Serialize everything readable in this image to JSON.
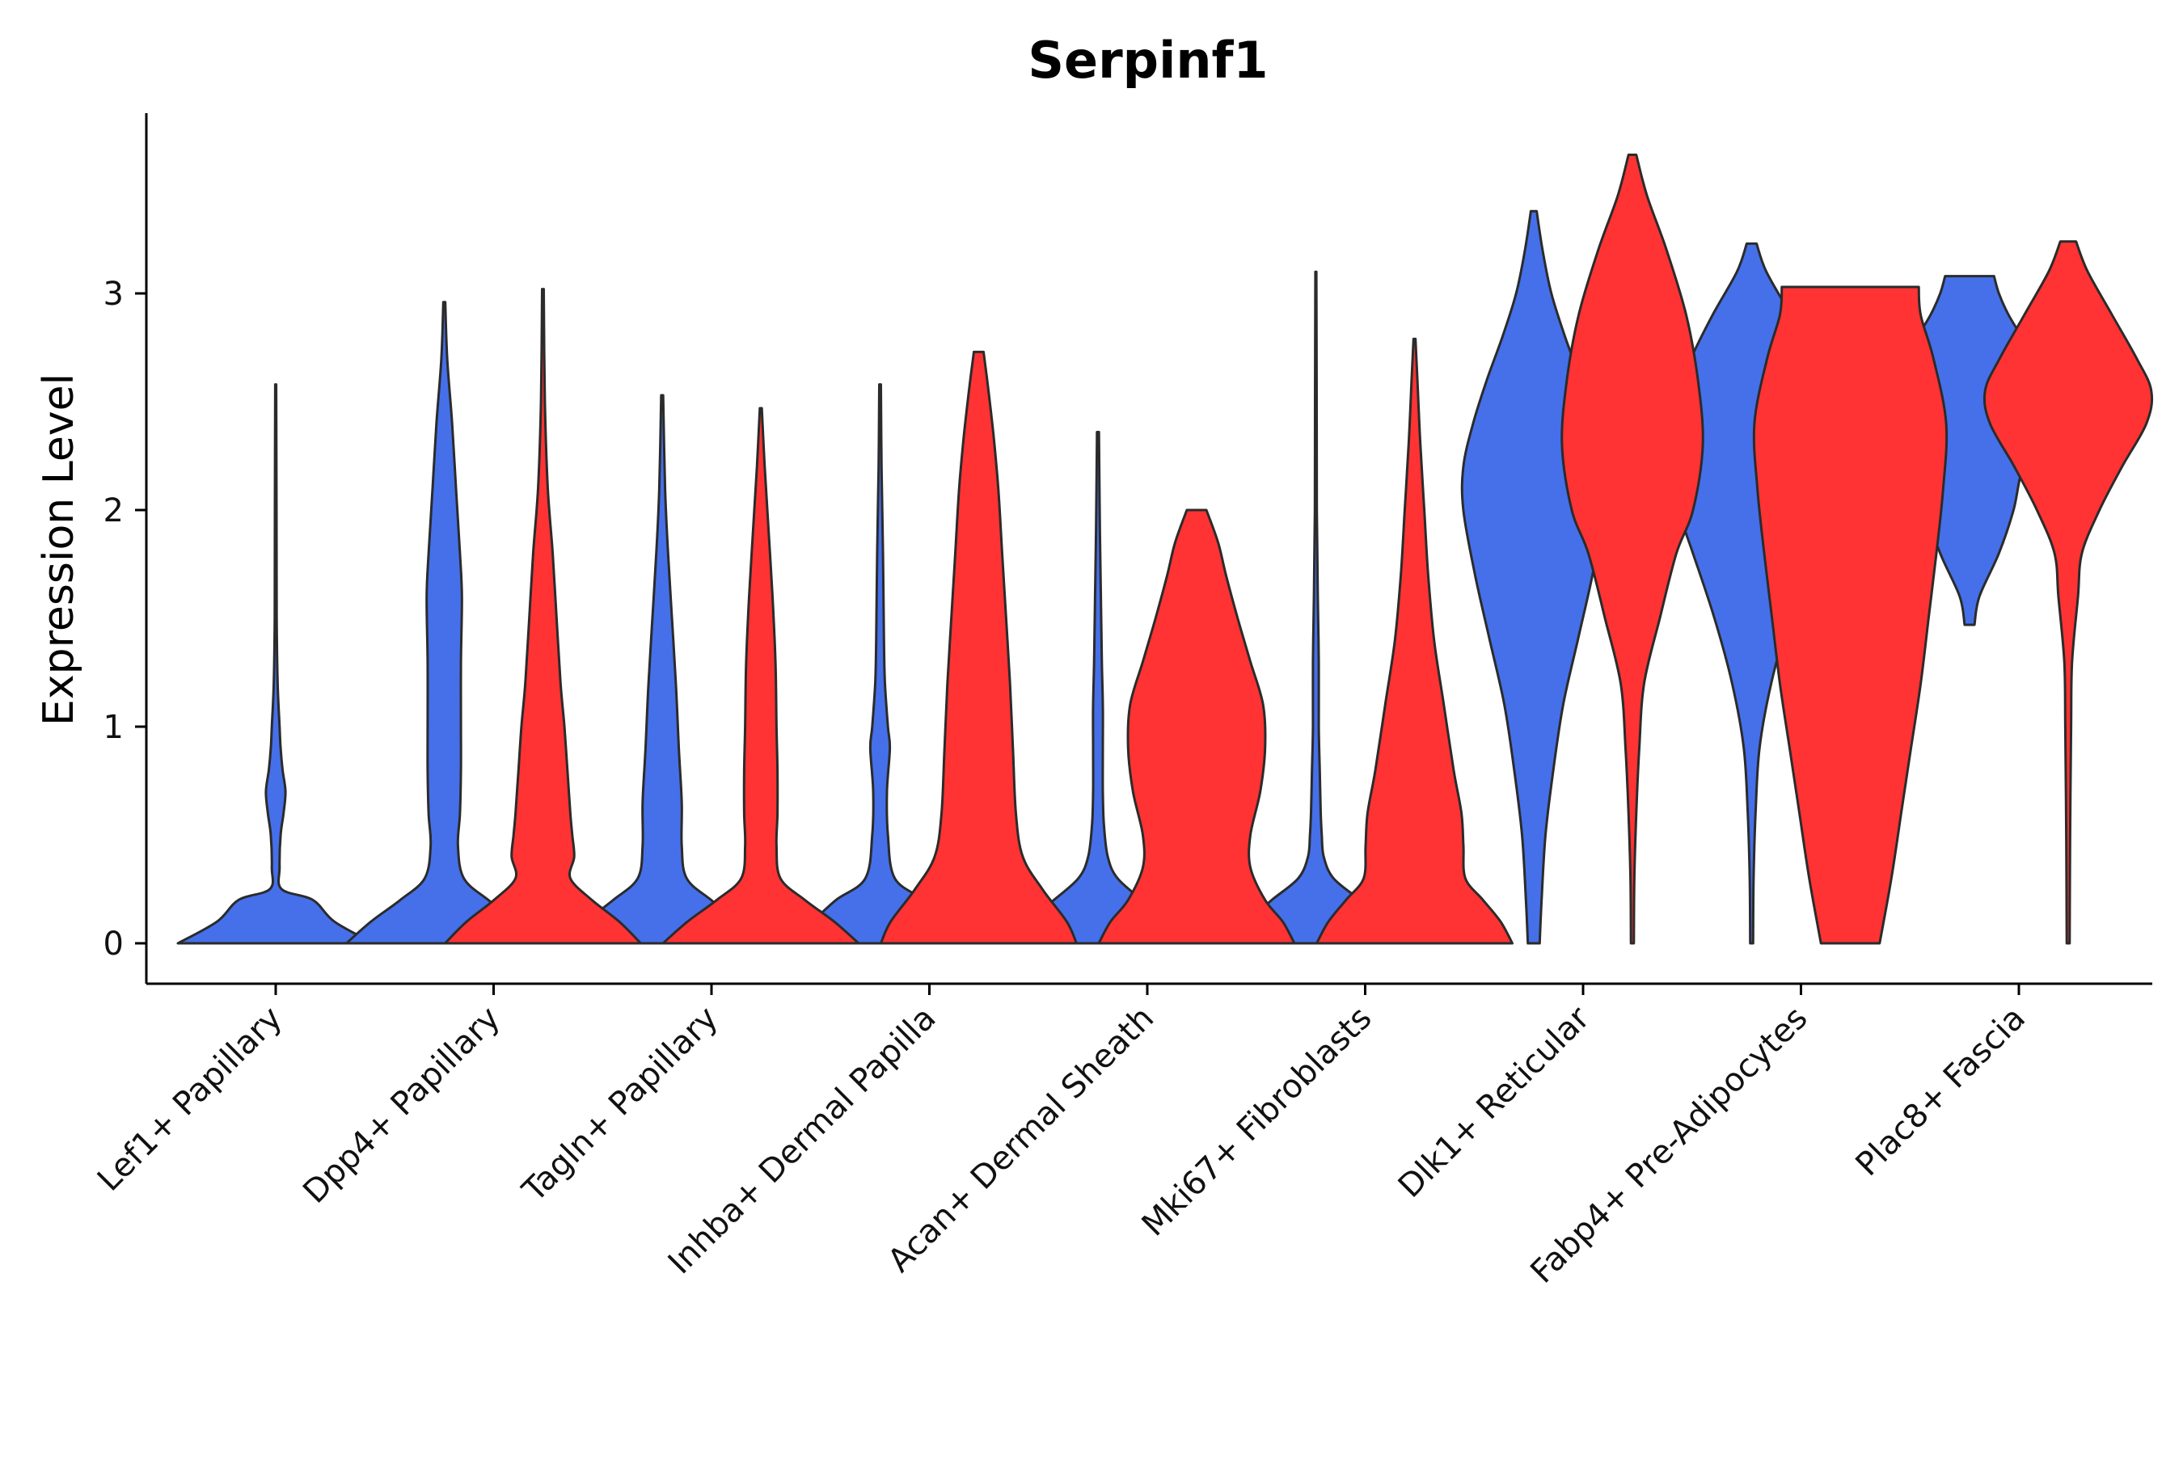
{
  "chart_data": {
    "type": "violin",
    "title": "Serpinf1",
    "xlabel": "",
    "ylabel": "Expression Level",
    "ylim": [
      -0.18,
      3.85
    ],
    "yticks": [
      0,
      1,
      2,
      3
    ],
    "grid": false,
    "legend": "none",
    "colors": {
      "group_a": "#4570EA",
      "group_b": "#FF3333",
      "outline": "#2b2b2b"
    },
    "categories": [
      "Lef1+ Papillary",
      "Dpp4+ Papillary",
      "Tagln+ Papillary",
      "Inhba+ Dermal Papilla",
      "Acan+ Dermal Sheath",
      "Mki67+ Fibroblasts",
      "Dlk1+ Reticular",
      "Fabp4+ Pre-Adipocytes",
      "Plac8+ Fascia"
    ],
    "series": [
      {
        "name": "group_a",
        "color": "#4570EA",
        "violins": [
          {
            "category": 0,
            "profile": [
              [
                0,
                1.0
              ],
              [
                0.1,
                0.6
              ],
              [
                0.2,
                0.38
              ],
              [
                0.25,
                0.06
              ],
              [
                0.35,
                0.04
              ],
              [
                0.5,
                0.05
              ],
              [
                0.6,
                0.08
              ],
              [
                0.7,
                0.1
              ],
              [
                0.8,
                0.07
              ],
              [
                0.9,
                0.05
              ],
              [
                1.0,
                0.04
              ],
              [
                1.2,
                0.02
              ],
              [
                1.5,
                0.01
              ],
              [
                2.0,
                0.008
              ],
              [
                2.58,
                0.005
              ]
            ]
          },
          {
            "category": 1,
            "profile": [
              [
                0,
                1.0
              ],
              [
                0.1,
                0.75
              ],
              [
                0.2,
                0.45
              ],
              [
                0.3,
                0.2
              ],
              [
                0.45,
                0.14
              ],
              [
                0.6,
                0.16
              ],
              [
                0.8,
                0.17
              ],
              [
                1.0,
                0.17
              ],
              [
                1.3,
                0.17
              ],
              [
                1.6,
                0.18
              ],
              [
                1.8,
                0.16
              ],
              [
                2.1,
                0.12
              ],
              [
                2.4,
                0.08
              ],
              [
                2.7,
                0.03
              ],
              [
                2.96,
                0.01
              ]
            ]
          },
          {
            "category": 2,
            "profile": [
              [
                0,
                1.0
              ],
              [
                0.1,
                0.78
              ],
              [
                0.2,
                0.5
              ],
              [
                0.3,
                0.25
              ],
              [
                0.45,
                0.2
              ],
              [
                0.65,
                0.2
              ],
              [
                0.9,
                0.17
              ],
              [
                1.2,
                0.14
              ],
              [
                1.5,
                0.1
              ],
              [
                1.8,
                0.06
              ],
              [
                2.1,
                0.03
              ],
              [
                2.53,
                0.01
              ]
            ]
          },
          {
            "category": 3,
            "profile": [
              [
                0,
                1.0
              ],
              [
                0.1,
                0.7
              ],
              [
                0.2,
                0.45
              ],
              [
                0.3,
                0.15
              ],
              [
                0.5,
                0.08
              ],
              [
                0.7,
                0.07
              ],
              [
                0.9,
                0.1
              ],
              [
                1.0,
                0.08
              ],
              [
                1.2,
                0.05
              ],
              [
                1.4,
                0.04
              ],
              [
                1.8,
                0.03
              ],
              [
                2.2,
                0.015
              ],
              [
                2.58,
                0.008
              ]
            ]
          },
          {
            "category": 4,
            "profile": [
              [
                0,
                1.0
              ],
              [
                0.1,
                0.72
              ],
              [
                0.2,
                0.45
              ],
              [
                0.3,
                0.2
              ],
              [
                0.4,
                0.1
              ],
              [
                0.55,
                0.06
              ],
              [
                0.7,
                0.05
              ],
              [
                0.9,
                0.05
              ],
              [
                1.1,
                0.05
              ],
              [
                1.3,
                0.04
              ],
              [
                1.6,
                0.03
              ],
              [
                1.9,
                0.02
              ],
              [
                2.36,
                0.01
              ]
            ]
          },
          {
            "category": 5,
            "profile": [
              [
                0,
                1.0
              ],
              [
                0.1,
                0.7
              ],
              [
                0.2,
                0.45
              ],
              [
                0.3,
                0.18
              ],
              [
                0.4,
                0.08
              ],
              [
                0.5,
                0.06
              ],
              [
                0.6,
                0.05
              ],
              [
                0.8,
                0.04
              ],
              [
                1.0,
                0.03
              ],
              [
                1.3,
                0.03
              ],
              [
                1.6,
                0.02
              ],
              [
                2.0,
                0.01
              ],
              [
                2.5,
                0.008
              ],
              [
                3.1,
                0.005
              ]
            ]
          },
          {
            "category": 6,
            "profile": [
              [
                0,
                0.06
              ],
              [
                0.2,
                0.08
              ],
              [
                0.5,
                0.12
              ],
              [
                0.8,
                0.2
              ],
              [
                1.1,
                0.3
              ],
              [
                1.4,
                0.45
              ],
              [
                1.7,
                0.6
              ],
              [
                2.0,
                0.72
              ],
              [
                2.2,
                0.72
              ],
              [
                2.4,
                0.62
              ],
              [
                2.6,
                0.48
              ],
              [
                2.8,
                0.32
              ],
              [
                3.0,
                0.18
              ],
              [
                3.2,
                0.09
              ],
              [
                3.38,
                0.03
              ]
            ]
          },
          {
            "category": 7,
            "profile": [
              [
                0,
                0.015
              ],
              [
                0.3,
                0.02
              ],
              [
                0.6,
                0.04
              ],
              [
                0.9,
                0.08
              ],
              [
                1.2,
                0.2
              ],
              [
                1.5,
                0.38
              ],
              [
                1.8,
                0.6
              ],
              [
                2.0,
                0.75
              ],
              [
                2.2,
                0.85
              ],
              [
                2.35,
                0.87
              ],
              [
                2.5,
                0.8
              ],
              [
                2.7,
                0.62
              ],
              [
                2.9,
                0.4
              ],
              [
                3.1,
                0.15
              ],
              [
                3.23,
                0.05
              ]
            ]
          },
          {
            "category": 8,
            "profile": [
              [
                1.47,
                0.05
              ],
              [
                1.6,
                0.1
              ],
              [
                1.8,
                0.3
              ],
              [
                2.0,
                0.45
              ],
              [
                2.2,
                0.55
              ],
              [
                2.4,
                0.8
              ],
              [
                2.5,
                0.85
              ],
              [
                2.6,
                0.78
              ],
              [
                2.75,
                0.6
              ],
              [
                2.9,
                0.4
              ],
              [
                3.0,
                0.3
              ],
              [
                3.08,
                0.25
              ]
            ]
          }
        ]
      },
      {
        "name": "group_b",
        "color": "#FF3333",
        "violins": [
          {
            "category": 1,
            "profile": [
              [
                0,
                1.0
              ],
              [
                0.1,
                0.78
              ],
              [
                0.2,
                0.5
              ],
              [
                0.3,
                0.28
              ],
              [
                0.4,
                0.32
              ],
              [
                0.5,
                0.3
              ],
              [
                0.6,
                0.28
              ],
              [
                0.8,
                0.25
              ],
              [
                1.0,
                0.22
              ],
              [
                1.2,
                0.18
              ],
              [
                1.5,
                0.14
              ],
              [
                1.8,
                0.1
              ],
              [
                2.1,
                0.05
              ],
              [
                2.5,
                0.02
              ],
              [
                3.02,
                0.008
              ]
            ]
          },
          {
            "category": 2,
            "profile": [
              [
                0,
                1.0
              ],
              [
                0.1,
                0.75
              ],
              [
                0.2,
                0.45
              ],
              [
                0.3,
                0.2
              ],
              [
                0.45,
                0.16
              ],
              [
                0.6,
                0.17
              ],
              [
                0.8,
                0.17
              ],
              [
                1.0,
                0.16
              ],
              [
                1.3,
                0.15
              ],
              [
                1.6,
                0.12
              ],
              [
                1.9,
                0.08
              ],
              [
                2.2,
                0.04
              ],
              [
                2.47,
                0.01
              ]
            ]
          },
          {
            "category": 3,
            "profile": [
              [
                0,
                1.0
              ],
              [
                0.1,
                0.9
              ],
              [
                0.25,
                0.65
              ],
              [
                0.4,
                0.45
              ],
              [
                0.6,
                0.38
              ],
              [
                0.9,
                0.35
              ],
              [
                1.2,
                0.32
              ],
              [
                1.5,
                0.28
              ],
              [
                1.8,
                0.24
              ],
              [
                2.1,
                0.2
              ],
              [
                2.35,
                0.15
              ],
              [
                2.55,
                0.1
              ],
              [
                2.73,
                0.05
              ]
            ]
          },
          {
            "category": 4,
            "profile": [
              [
                0,
                1.0
              ],
              [
                0.1,
                0.88
              ],
              [
                0.2,
                0.7
              ],
              [
                0.35,
                0.55
              ],
              [
                0.5,
                0.55
              ],
              [
                0.7,
                0.65
              ],
              [
                0.9,
                0.7
              ],
              [
                1.1,
                0.68
              ],
              [
                1.3,
                0.55
              ],
              [
                1.5,
                0.42
              ],
              [
                1.7,
                0.3
              ],
              [
                1.85,
                0.22
              ],
              [
                2.0,
                0.1
              ]
            ]
          },
          {
            "category": 5,
            "profile": [
              [
                0,
                1.0
              ],
              [
                0.1,
                0.88
              ],
              [
                0.2,
                0.7
              ],
              [
                0.3,
                0.52
              ],
              [
                0.45,
                0.5
              ],
              [
                0.6,
                0.48
              ],
              [
                0.8,
                0.4
              ],
              [
                1.1,
                0.3
              ],
              [
                1.4,
                0.2
              ],
              [
                1.7,
                0.14
              ],
              [
                2.0,
                0.1
              ],
              [
                2.3,
                0.06
              ],
              [
                2.6,
                0.03
              ],
              [
                2.79,
                0.01
              ]
            ]
          },
          {
            "category": 6,
            "profile": [
              [
                0,
                0.015
              ],
              [
                0.3,
                0.02
              ],
              [
                0.6,
                0.04
              ],
              [
                0.9,
                0.07
              ],
              [
                1.2,
                0.12
              ],
              [
                1.5,
                0.28
              ],
              [
                1.8,
                0.45
              ],
              [
                2.0,
                0.62
              ],
              [
                2.3,
                0.72
              ],
              [
                2.6,
                0.67
              ],
              [
                2.9,
                0.55
              ],
              [
                3.2,
                0.35
              ],
              [
                3.45,
                0.15
              ],
              [
                3.64,
                0.04
              ]
            ]
          },
          {
            "category": 7,
            "profile": [
              [
                0,
                0.3
              ],
              [
                0.3,
                0.42
              ],
              [
                0.6,
                0.52
              ],
              [
                0.9,
                0.62
              ],
              [
                1.2,
                0.72
              ],
              [
                1.5,
                0.8
              ],
              [
                1.8,
                0.88
              ],
              [
                2.1,
                0.95
              ],
              [
                2.4,
                0.98
              ],
              [
                2.7,
                0.85
              ],
              [
                2.9,
                0.72
              ],
              [
                3.03,
                0.7
              ]
            ]
          },
          {
            "category": 8,
            "profile": [
              [
                0,
                0.015
              ],
              [
                0.5,
                0.02
              ],
              [
                1.0,
                0.03
              ],
              [
                1.3,
                0.04
              ],
              [
                1.6,
                0.1
              ],
              [
                1.8,
                0.14
              ],
              [
                2.0,
                0.32
              ],
              [
                2.2,
                0.55
              ],
              [
                2.4,
                0.8
              ],
              [
                2.55,
                0.85
              ],
              [
                2.7,
                0.7
              ],
              [
                2.9,
                0.45
              ],
              [
                3.1,
                0.2
              ],
              [
                3.24,
                0.08
              ]
            ]
          }
        ]
      }
    ]
  }
}
